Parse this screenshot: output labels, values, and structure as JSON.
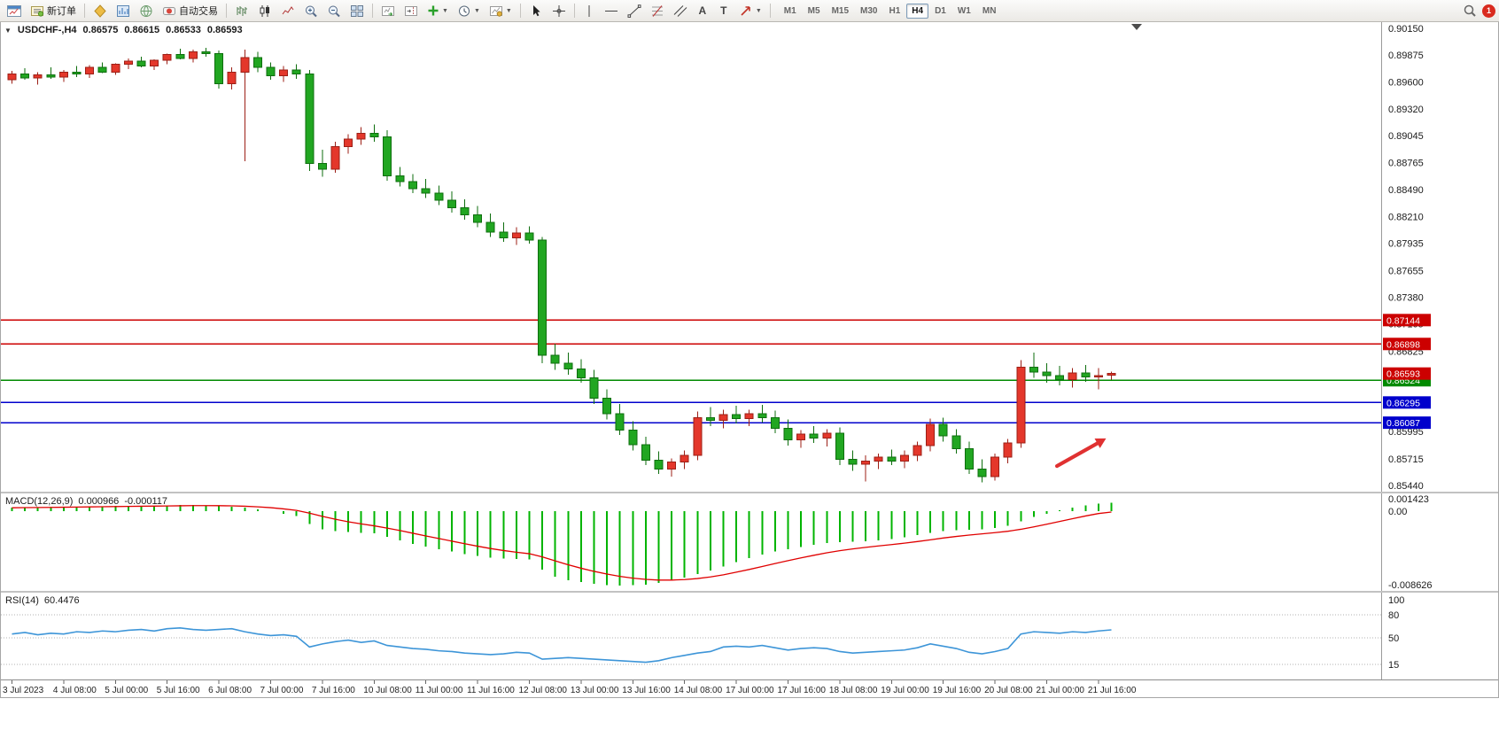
{
  "toolbar": {
    "new_order_label": "新订单",
    "autotrading_label": "自动交易",
    "timeframes": [
      "M1",
      "M5",
      "M15",
      "M30",
      "H1",
      "H4",
      "D1",
      "W1",
      "MN"
    ],
    "active_timeframe": "H4",
    "notification_count": "1",
    "icons": [
      "new-chart",
      "new-order",
      "metaeditor",
      "market-watch",
      "community",
      "autotrading",
      "bar-chart",
      "candlestick-chart",
      "line-chart",
      "zoom-in",
      "zoom-out",
      "tile-windows",
      "auto-scroll",
      "chart-shift",
      "indicators",
      "periods",
      "templates",
      "cursor",
      "crosshair",
      "vertical-line",
      "horizontal-line",
      "trendline",
      "fibonacci",
      "channel",
      "text",
      "label",
      "arrows",
      "search",
      "notifications"
    ]
  },
  "chart": {
    "title": "USDCHF-,H4",
    "ohlc": {
      "open": "0.86575",
      "high": "0.86615",
      "low": "0.86533",
      "close": "0.86593"
    }
  },
  "chart_data": {
    "type": "candlestick",
    "symbol": "USDCHF-",
    "period": "H4",
    "price_axis": {
      "min": 0.8544,
      "max": 0.9015,
      "grid_labels": [
        0.9015,
        0.89875,
        0.896,
        0.8932,
        0.89045,
        0.88765,
        0.8849,
        0.8821,
        0.87935,
        0.87655,
        0.8738,
        0.87105,
        0.86825,
        0.8655,
        0.8627,
        0.85995,
        0.85715,
        0.8544
      ]
    },
    "current_price": 0.86593,
    "current_price_color": "#cc0000",
    "hlines": [
      {
        "price": 0.87144,
        "color": "#cc0000"
      },
      {
        "price": 0.86898,
        "color": "#cc0000"
      },
      {
        "price": 0.86524,
        "color": "#008a00"
      },
      {
        "price": 0.86295,
        "color": "#0000cc"
      },
      {
        "price": 0.86087,
        "color": "#0000cc"
      }
    ],
    "candles": [
      [
        0.8962,
        0.8971,
        0.8958,
        0.8968
      ],
      [
        0.8968,
        0.8974,
        0.8962,
        0.8964
      ],
      [
        0.8964,
        0.897,
        0.8957,
        0.8967
      ],
      [
        0.8967,
        0.8975,
        0.8963,
        0.8965
      ],
      [
        0.8965,
        0.8972,
        0.896,
        0.897
      ],
      [
        0.897,
        0.8976,
        0.8965,
        0.8968
      ],
      [
        0.8968,
        0.8977,
        0.8964,
        0.8975
      ],
      [
        0.8975,
        0.898,
        0.8969,
        0.897
      ],
      [
        0.897,
        0.8979,
        0.8967,
        0.8978
      ],
      [
        0.8978,
        0.8984,
        0.8973,
        0.8981
      ],
      [
        0.8981,
        0.8986,
        0.8975,
        0.8976
      ],
      [
        0.8976,
        0.8983,
        0.8972,
        0.8982
      ],
      [
        0.8982,
        0.8989,
        0.8978,
        0.8988
      ],
      [
        0.8988,
        0.8994,
        0.8983,
        0.8984
      ],
      [
        0.8984,
        0.8993,
        0.898,
        0.8991
      ],
      [
        0.8991,
        0.8995,
        0.8986,
        0.8989
      ],
      [
        0.8989,
        0.8992,
        0.8953,
        0.8958
      ],
      [
        0.8958,
        0.8975,
        0.8952,
        0.897
      ],
      [
        0.897,
        0.8993,
        0.8878,
        0.8985
      ],
      [
        0.8985,
        0.8991,
        0.897,
        0.8975
      ],
      [
        0.8975,
        0.898,
        0.8962,
        0.8966
      ],
      [
        0.8966,
        0.8976,
        0.896,
        0.8972
      ],
      [
        0.8972,
        0.8978,
        0.8963,
        0.8968
      ],
      [
        0.8968,
        0.8972,
        0.8868,
        0.8876
      ],
      [
        0.8876,
        0.889,
        0.8862,
        0.887
      ],
      [
        0.887,
        0.8898,
        0.8866,
        0.8893
      ],
      [
        0.8893,
        0.8906,
        0.8886,
        0.8901
      ],
      [
        0.8901,
        0.8913,
        0.8895,
        0.8907
      ],
      [
        0.8907,
        0.8916,
        0.8898,
        0.8903
      ],
      [
        0.8903,
        0.891,
        0.8858,
        0.8863
      ],
      [
        0.8863,
        0.8872,
        0.8852,
        0.8857
      ],
      [
        0.8857,
        0.8865,
        0.8845,
        0.885
      ],
      [
        0.885,
        0.886,
        0.884,
        0.8845
      ],
      [
        0.8845,
        0.8853,
        0.8833,
        0.8838
      ],
      [
        0.8838,
        0.8847,
        0.8825,
        0.883
      ],
      [
        0.883,
        0.8839,
        0.8818,
        0.8823
      ],
      [
        0.8823,
        0.8832,
        0.881,
        0.8815
      ],
      [
        0.8815,
        0.8824,
        0.88,
        0.8805
      ],
      [
        0.8805,
        0.8815,
        0.8795,
        0.8799
      ],
      [
        0.8799,
        0.881,
        0.8792,
        0.8804
      ],
      [
        0.8804,
        0.8811,
        0.8793,
        0.8797
      ],
      [
        0.8797,
        0.88,
        0.867,
        0.8678
      ],
      [
        0.8678,
        0.869,
        0.8663,
        0.867
      ],
      [
        0.867,
        0.8681,
        0.8658,
        0.8664
      ],
      [
        0.8664,
        0.8674,
        0.865,
        0.8655
      ],
      [
        0.8655,
        0.8663,
        0.8628,
        0.8634
      ],
      [
        0.8634,
        0.8643,
        0.8612,
        0.8618
      ],
      [
        0.8618,
        0.8628,
        0.8596,
        0.8601
      ],
      [
        0.8601,
        0.861,
        0.858,
        0.8586
      ],
      [
        0.8586,
        0.8594,
        0.8565,
        0.857
      ],
      [
        0.857,
        0.8579,
        0.8556,
        0.8561
      ],
      [
        0.8561,
        0.8572,
        0.8553,
        0.8568
      ],
      [
        0.8568,
        0.858,
        0.8561,
        0.8575
      ],
      [
        0.8575,
        0.862,
        0.857,
        0.8614
      ],
      [
        0.8614,
        0.8625,
        0.8605,
        0.8611
      ],
      [
        0.8611,
        0.8622,
        0.8603,
        0.8617
      ],
      [
        0.8617,
        0.8626,
        0.8608,
        0.8613
      ],
      [
        0.8613,
        0.8622,
        0.8605,
        0.8618
      ],
      [
        0.8618,
        0.8627,
        0.8609,
        0.8614
      ],
      [
        0.8614,
        0.8621,
        0.8598,
        0.8603
      ],
      [
        0.8603,
        0.8612,
        0.8585,
        0.8591
      ],
      [
        0.8591,
        0.8601,
        0.8583,
        0.8597
      ],
      [
        0.8597,
        0.8605,
        0.8588,
        0.8593
      ],
      [
        0.8593,
        0.8602,
        0.8584,
        0.8598
      ],
      [
        0.8598,
        0.8604,
        0.8565,
        0.8571
      ],
      [
        0.8571,
        0.858,
        0.8559,
        0.8566
      ],
      [
        0.8566,
        0.8575,
        0.8548,
        0.8569
      ],
      [
        0.8569,
        0.8577,
        0.8561,
        0.8573
      ],
      [
        0.8573,
        0.8581,
        0.8565,
        0.8569
      ],
      [
        0.8569,
        0.858,
        0.8562,
        0.8575
      ],
      [
        0.8575,
        0.8589,
        0.8569,
        0.8585
      ],
      [
        0.8585,
        0.8613,
        0.8579,
        0.8607
      ],
      [
        0.8607,
        0.8614,
        0.8589,
        0.8595
      ],
      [
        0.8595,
        0.8602,
        0.8577,
        0.8582
      ],
      [
        0.8582,
        0.8589,
        0.8556,
        0.8561
      ],
      [
        0.8561,
        0.8571,
        0.8547,
        0.8553
      ],
      [
        0.8553,
        0.8577,
        0.8549,
        0.8573
      ],
      [
        0.8573,
        0.8592,
        0.8567,
        0.8588
      ],
      [
        0.8588,
        0.8673,
        0.8583,
        0.8666
      ],
      [
        0.8666,
        0.8681,
        0.8655,
        0.8661
      ],
      [
        0.8661,
        0.867,
        0.865,
        0.8657
      ],
      [
        0.8657,
        0.8667,
        0.8647,
        0.8653
      ],
      [
        0.8653,
        0.8665,
        0.8645,
        0.866
      ],
      [
        0.866,
        0.8668,
        0.8651,
        0.8656
      ],
      [
        0.8656,
        0.8665,
        0.8643,
        0.8657
      ],
      [
        0.86575,
        0.86615,
        0.86533,
        0.86593
      ]
    ],
    "candle_colors": {
      "up": "#e4372b",
      "down": "#21a621"
    },
    "time_labels": [
      "3 Jul 2023",
      "4 Jul 08:00",
      "5 Jul 00:00",
      "5 Jul 16:00",
      "6 Jul 08:00",
      "7 Jul 00:00",
      "7 Jul 16:00",
      "10 Jul 08:00",
      "11 Jul 00:00",
      "11 Jul 16:00",
      "12 Jul 08:00",
      "13 Jul 00:00",
      "13 Jul 16:00",
      "14 Jul 08:00",
      "17 Jul 00:00",
      "17 Jul 16:00",
      "18 Jul 08:00",
      "19 Jul 00:00",
      "19 Jul 16:00",
      "20 Jul 08:00",
      "21 Jul 00:00",
      "21 Jul 16:00"
    ],
    "label_every": 4,
    "arrow": {
      "i1": 81.1,
      "p1": 0.8564,
      "i2": 84.3,
      "p2": 0.8588,
      "color": "#e03131"
    },
    "macd": {
      "label": "MACD(12,26,9)",
      "main": "0.000966",
      "signal": "-0.000117",
      "histogram_color": "#00b400",
      "signal_color": "#e00000",
      "scale": {
        "labels": [
          "0.001423",
          "0.00",
          "-0.008626"
        ],
        "values": [
          0.001423,
          0,
          -0.008626
        ]
      },
      "histogram": [
        0.0004,
        0.00042,
        0.0004,
        0.00045,
        0.00048,
        0.0005,
        0.00052,
        0.00055,
        0.00058,
        0.0006,
        0.00062,
        0.0006,
        0.00065,
        0.00068,
        0.0007,
        0.00065,
        0.0006,
        0.00052,
        0.0004,
        0.0002,
        0.0,
        -0.0003,
        -0.0006,
        -0.0015,
        -0.0021,
        -0.0023,
        -0.0024,
        -0.0025,
        -0.0026,
        -0.003,
        -0.0034,
        -0.0038,
        -0.0041,
        -0.0044,
        -0.0047,
        -0.005,
        -0.0052,
        -0.0054,
        -0.0055,
        -0.00555,
        -0.0056,
        -0.0068,
        -0.0076,
        -0.008,
        -0.0082,
        -0.0084,
        -0.00855,
        -0.00862,
        -0.0086,
        -0.0085,
        -0.0083,
        -0.008,
        -0.0077,
        -0.0073,
        -0.0069,
        -0.0064,
        -0.0059,
        -0.00545,
        -0.00505,
        -0.0047,
        -0.0044,
        -0.00415,
        -0.0039,
        -0.0037,
        -0.0036,
        -0.00355,
        -0.0035,
        -0.0034,
        -0.00325,
        -0.00305,
        -0.0028,
        -0.0025,
        -0.0023,
        -0.0022,
        -0.00215,
        -0.0021,
        -0.00195,
        -0.0017,
        -0.0012,
        -0.0007,
        -0.0003,
        0.0001,
        0.0004,
        0.00065,
        0.00085,
        0.000966
      ],
      "signal_line": [
        0.00038,
        0.0004,
        0.00041,
        0.00042,
        0.00044,
        0.00046,
        0.00048,
        0.0005,
        0.00052,
        0.00054,
        0.00056,
        0.00057,
        0.00059,
        0.00061,
        0.00063,
        0.00063,
        0.00062,
        0.0006,
        0.00056,
        0.00049,
        0.00039,
        0.00025,
        8e-05,
        -0.00024,
        -0.00061,
        -0.00095,
        -0.00124,
        -0.00149,
        -0.00171,
        -0.00197,
        -0.00226,
        -0.00257,
        -0.00288,
        -0.00318,
        -0.00348,
        -0.00378,
        -0.00407,
        -0.00434,
        -0.00457,
        -0.00477,
        -0.00494,
        -0.00531,
        -0.00577,
        -0.00622,
        -0.00662,
        -0.00698,
        -0.00729,
        -0.00756,
        -0.00777,
        -0.00791,
        -0.00799,
        -0.00799,
        -0.00793,
        -0.00781,
        -0.00763,
        -0.00738,
        -0.00708,
        -0.00676,
        -0.00642,
        -0.00607,
        -0.00574,
        -0.00542,
        -0.00512,
        -0.00483,
        -0.00459,
        -0.00438,
        -0.0042,
        -0.00404,
        -0.00388,
        -0.00372,
        -0.00353,
        -0.00333,
        -0.00312,
        -0.00294,
        -0.00278,
        -0.00264,
        -0.0025,
        -0.00234,
        -0.00211,
        -0.00183,
        -0.00152,
        -0.0012,
        -0.00088,
        -0.00057,
        -0.00029,
        -0.000117
      ]
    },
    "rsi": {
      "label": "RSI(14)",
      "value": "60.4476",
      "line_color": "#3d95d8",
      "levels": [
        100,
        80,
        50,
        15
      ],
      "values": [
        55,
        57,
        54,
        56,
        55,
        58,
        57,
        59,
        58,
        60,
        61,
        59,
        62,
        63,
        61,
        60,
        61,
        62,
        58,
        55,
        53,
        54,
        52,
        38,
        42,
        45,
        47,
        44,
        46,
        40,
        38,
        36,
        35,
        33,
        32,
        30,
        29,
        28,
        29,
        31,
        30,
        22,
        23,
        24,
        23,
        22,
        21,
        20,
        19,
        18,
        20,
        24,
        27,
        30,
        32,
        38,
        39,
        38,
        40,
        37,
        34,
        36,
        37,
        36,
        32,
        30,
        31,
        32,
        33,
        34,
        37,
        42,
        39,
        36,
        31,
        29,
        32,
        36,
        55,
        58,
        57,
        56,
        58,
        57,
        59,
        60.4476
      ]
    }
  }
}
